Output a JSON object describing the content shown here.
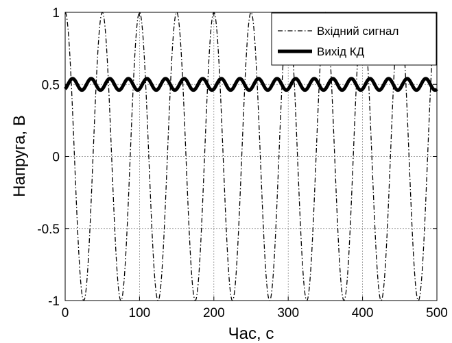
{
  "chart_data": {
    "type": "line",
    "xlabel": "Час, с",
    "ylabel": "Напруга, В",
    "xlim": [
      0,
      500
    ],
    "ylim": [
      -1,
      1
    ],
    "xticks": [
      0,
      100,
      200,
      300,
      400,
      500
    ],
    "yticks": [
      -1,
      -0.5,
      0,
      0.5,
      1
    ],
    "xtick_labels": [
      "0",
      "100",
      "200",
      "300",
      "400",
      "500"
    ],
    "ytick_labels": [
      "-1",
      "-0.5",
      "0",
      "0.5",
      "1"
    ],
    "grid": true,
    "legend": {
      "position": "top-right"
    },
    "series": [
      {
        "name": "Вхідний сигнал",
        "style": "dash-dot",
        "color": "#000000",
        "function": "cosine",
        "amplitude": 1,
        "offset": 0,
        "period": 50,
        "phase_peak_x": 0
      },
      {
        "name": "Вихід КД",
        "style": "solid-thick",
        "color": "#000000",
        "function": "cosine",
        "amplitude": 0.04,
        "offset": 0.5,
        "period": 25,
        "phase_peak_x": 10
      }
    ]
  }
}
